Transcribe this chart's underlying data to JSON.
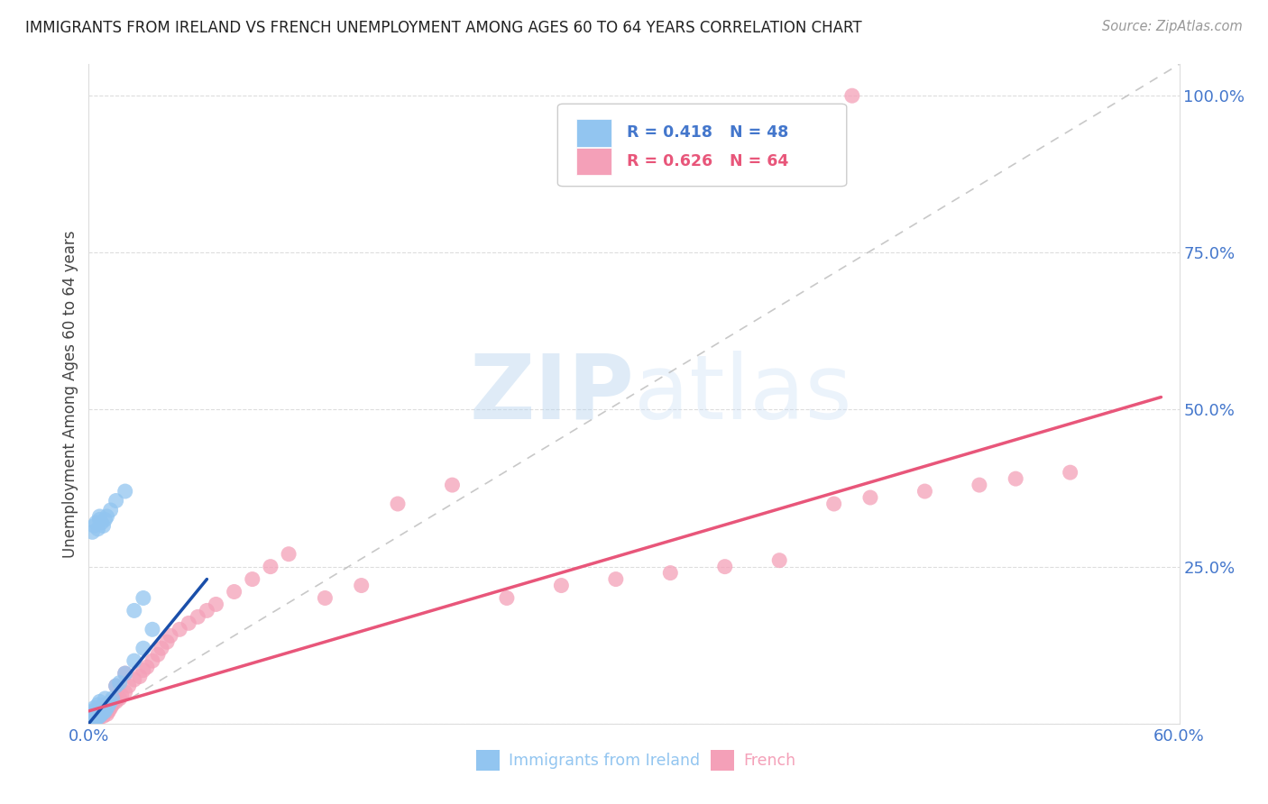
{
  "title": "IMMIGRANTS FROM IRELAND VS FRENCH UNEMPLOYMENT AMONG AGES 60 TO 64 YEARS CORRELATION CHART",
  "source": "Source: ZipAtlas.com",
  "ylabel_label": "Unemployment Among Ages 60 to 64 years",
  "xlim": [
    0.0,
    0.6
  ],
  "ylim": [
    0.0,
    1.05
  ],
  "xticks": [
    0.0,
    0.1,
    0.2,
    0.3,
    0.4,
    0.5,
    0.6
  ],
  "xticklabels": [
    "0.0%",
    "",
    "",
    "",
    "",
    "",
    "60.0%"
  ],
  "yticks": [
    0.0,
    0.25,
    0.5,
    0.75,
    1.0
  ],
  "right_yticklabels": [
    "",
    "25.0%",
    "50.0%",
    "75.0%",
    "100.0%"
  ],
  "legend_r_blue": "R = 0.418",
  "legend_n_blue": "N = 48",
  "legend_r_pink": "R = 0.626",
  "legend_n_pink": "N = 64",
  "blue_color": "#92c5f0",
  "pink_color": "#f4a0b8",
  "blue_line_color": "#1a4faa",
  "pink_line_color": "#e8567a",
  "tick_color": "#4477cc",
  "grid_color": "#dddddd",
  "diag_color": "#bbbbbb",
  "blue_line_x0": 0.0,
  "blue_line_x1": 0.065,
  "blue_line_y0": 0.0,
  "blue_line_y1": 0.23,
  "pink_line_x0": 0.0,
  "pink_line_x1": 0.59,
  "pink_line_y0": 0.02,
  "pink_line_y1": 0.52,
  "blue_scatter_x": [
    0.001,
    0.001,
    0.002,
    0.002,
    0.002,
    0.003,
    0.003,
    0.003,
    0.004,
    0.004,
    0.004,
    0.005,
    0.005,
    0.005,
    0.006,
    0.006,
    0.006,
    0.007,
    0.007,
    0.008,
    0.008,
    0.009,
    0.009,
    0.01,
    0.011,
    0.012,
    0.013,
    0.015,
    0.017,
    0.02,
    0.025,
    0.03,
    0.035,
    0.002,
    0.003,
    0.004,
    0.005,
    0.006,
    0.006,
    0.007,
    0.008,
    0.009,
    0.01,
    0.012,
    0.015,
    0.02,
    0.025,
    0.03
  ],
  "blue_scatter_y": [
    0.005,
    0.01,
    0.008,
    0.015,
    0.02,
    0.01,
    0.015,
    0.025,
    0.008,
    0.012,
    0.02,
    0.01,
    0.018,
    0.03,
    0.012,
    0.02,
    0.035,
    0.015,
    0.025,
    0.018,
    0.03,
    0.02,
    0.04,
    0.025,
    0.03,
    0.035,
    0.04,
    0.06,
    0.065,
    0.08,
    0.1,
    0.12,
    0.15,
    0.305,
    0.315,
    0.32,
    0.31,
    0.325,
    0.33,
    0.32,
    0.315,
    0.325,
    0.33,
    0.34,
    0.355,
    0.37,
    0.18,
    0.2
  ],
  "pink_scatter_x": [
    0.001,
    0.001,
    0.002,
    0.002,
    0.003,
    0.003,
    0.004,
    0.004,
    0.005,
    0.005,
    0.006,
    0.006,
    0.007,
    0.007,
    0.008,
    0.008,
    0.009,
    0.01,
    0.01,
    0.011,
    0.012,
    0.013,
    0.015,
    0.015,
    0.017,
    0.018,
    0.02,
    0.02,
    0.022,
    0.025,
    0.028,
    0.03,
    0.032,
    0.035,
    0.038,
    0.04,
    0.043,
    0.045,
    0.05,
    0.055,
    0.06,
    0.065,
    0.07,
    0.08,
    0.09,
    0.1,
    0.11,
    0.13,
    0.15,
    0.17,
    0.2,
    0.23,
    0.26,
    0.29,
    0.32,
    0.35,
    0.38,
    0.41,
    0.43,
    0.46,
    0.49,
    0.51,
    0.54,
    0.42
  ],
  "pink_scatter_y": [
    0.005,
    0.012,
    0.008,
    0.015,
    0.01,
    0.02,
    0.008,
    0.018,
    0.012,
    0.025,
    0.01,
    0.022,
    0.015,
    0.025,
    0.012,
    0.028,
    0.018,
    0.015,
    0.03,
    0.02,
    0.025,
    0.03,
    0.035,
    0.06,
    0.04,
    0.045,
    0.05,
    0.08,
    0.06,
    0.07,
    0.075,
    0.085,
    0.09,
    0.1,
    0.11,
    0.12,
    0.13,
    0.14,
    0.15,
    0.16,
    0.17,
    0.18,
    0.19,
    0.21,
    0.23,
    0.25,
    0.27,
    0.2,
    0.22,
    0.35,
    0.38,
    0.2,
    0.22,
    0.23,
    0.24,
    0.25,
    0.26,
    0.35,
    0.36,
    0.37,
    0.38,
    0.39,
    0.4,
    1.0
  ]
}
